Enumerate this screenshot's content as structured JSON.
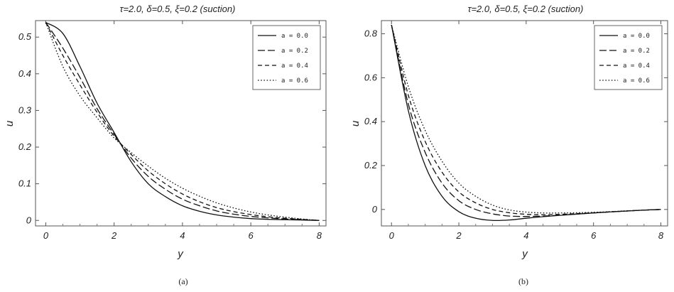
{
  "chart_data": [
    {
      "type": "line",
      "title": "τ=2.0, δ=0.5, ξ=0.2 (suction)",
      "caption": "(a)",
      "xlabel": "y",
      "ylabel": "u",
      "xlim": [
        -0.3,
        8.2
      ],
      "ylim": [
        -0.015,
        0.545
      ],
      "xticks": [
        0,
        2,
        4,
        6,
        8
      ],
      "yticks": [
        0,
        0.1,
        0.2,
        0.3,
        0.4,
        0.5
      ],
      "ytick_labels": [
        "0",
        "0.1",
        "0.2",
        "0.3",
        "0.4",
        "0.5"
      ],
      "legend_position": "top-right",
      "x": [
        0,
        0.5,
        1,
        1.5,
        2,
        2.5,
        3,
        3.5,
        4,
        4.5,
        5,
        5.5,
        6,
        6.5,
        7,
        7.5,
        8
      ],
      "series": [
        {
          "name": "a = 0.0",
          "dash": "solid",
          "values": [
            0.54,
            0.51,
            0.42,
            0.32,
            0.24,
            0.16,
            0.1,
            0.065,
            0.04,
            0.025,
            0.015,
            0.009,
            0.005,
            0.003,
            0.002,
            0.001,
            0.0
          ]
        },
        {
          "name": "a = 0.2",
          "dash": "long",
          "values": [
            0.54,
            0.47,
            0.39,
            0.305,
            0.235,
            0.17,
            0.12,
            0.085,
            0.058,
            0.04,
            0.026,
            0.017,
            0.011,
            0.007,
            0.004,
            0.002,
            0.0
          ]
        },
        {
          "name": "a = 0.4",
          "dash": "medium",
          "values": [
            0.54,
            0.45,
            0.37,
            0.295,
            0.23,
            0.18,
            0.135,
            0.1,
            0.072,
            0.051,
            0.035,
            0.024,
            0.016,
            0.01,
            0.006,
            0.003,
            0.0
          ]
        },
        {
          "name": "a = 0.6",
          "dash": "dotted",
          "values": [
            0.54,
            0.42,
            0.34,
            0.28,
            0.225,
            0.185,
            0.148,
            0.115,
            0.088,
            0.066,
            0.048,
            0.034,
            0.023,
            0.015,
            0.009,
            0.004,
            0.0
          ]
        }
      ]
    },
    {
      "type": "line",
      "title": "τ=2.0, δ=0.5, ξ=0.2 (suction)",
      "caption": "(b)",
      "xlabel": "y",
      "ylabel": "u",
      "xlim": [
        -0.3,
        8.2
      ],
      "ylim": [
        -0.075,
        0.86
      ],
      "xticks": [
        0,
        2,
        4,
        6,
        8
      ],
      "yticks": [
        0,
        0.2,
        0.4,
        0.6,
        0.8
      ],
      "ytick_labels": [
        "0",
        "0.2",
        "0.4",
        "0.6",
        "0.8"
      ],
      "legend_position": "top-right",
      "x": [
        0,
        0.5,
        1,
        1.5,
        2,
        2.5,
        3,
        3.5,
        4,
        4.5,
        5,
        5.5,
        6,
        6.5,
        7,
        7.5,
        8
      ],
      "series": [
        {
          "name": "a = 0.0",
          "dash": "solid",
          "values": [
            0.84,
            0.45,
            0.2,
            0.06,
            -0.01,
            -0.04,
            -0.05,
            -0.048,
            -0.04,
            -0.033,
            -0.027,
            -0.021,
            -0.016,
            -0.011,
            -0.007,
            -0.003,
            0.0
          ]
        },
        {
          "name": "a = 0.2",
          "dash": "long",
          "values": [
            0.84,
            0.48,
            0.26,
            0.12,
            0.04,
            0.0,
            -0.02,
            -0.03,
            -0.032,
            -0.03,
            -0.026,
            -0.021,
            -0.016,
            -0.011,
            -0.007,
            -0.003,
            0.0
          ]
        },
        {
          "name": "a = 0.4",
          "dash": "medium",
          "values": [
            0.84,
            0.52,
            0.31,
            0.17,
            0.08,
            0.03,
            0.0,
            -0.015,
            -0.022,
            -0.024,
            -0.022,
            -0.019,
            -0.015,
            -0.011,
            -0.007,
            -0.003,
            0.0
          ]
        },
        {
          "name": "a = 0.6",
          "dash": "dotted",
          "values": [
            0.84,
            0.56,
            0.36,
            0.22,
            0.12,
            0.06,
            0.02,
            -0.002,
            -0.012,
            -0.016,
            -0.016,
            -0.015,
            -0.013,
            -0.01,
            -0.006,
            -0.003,
            0.0
          ]
        }
      ]
    }
  ]
}
